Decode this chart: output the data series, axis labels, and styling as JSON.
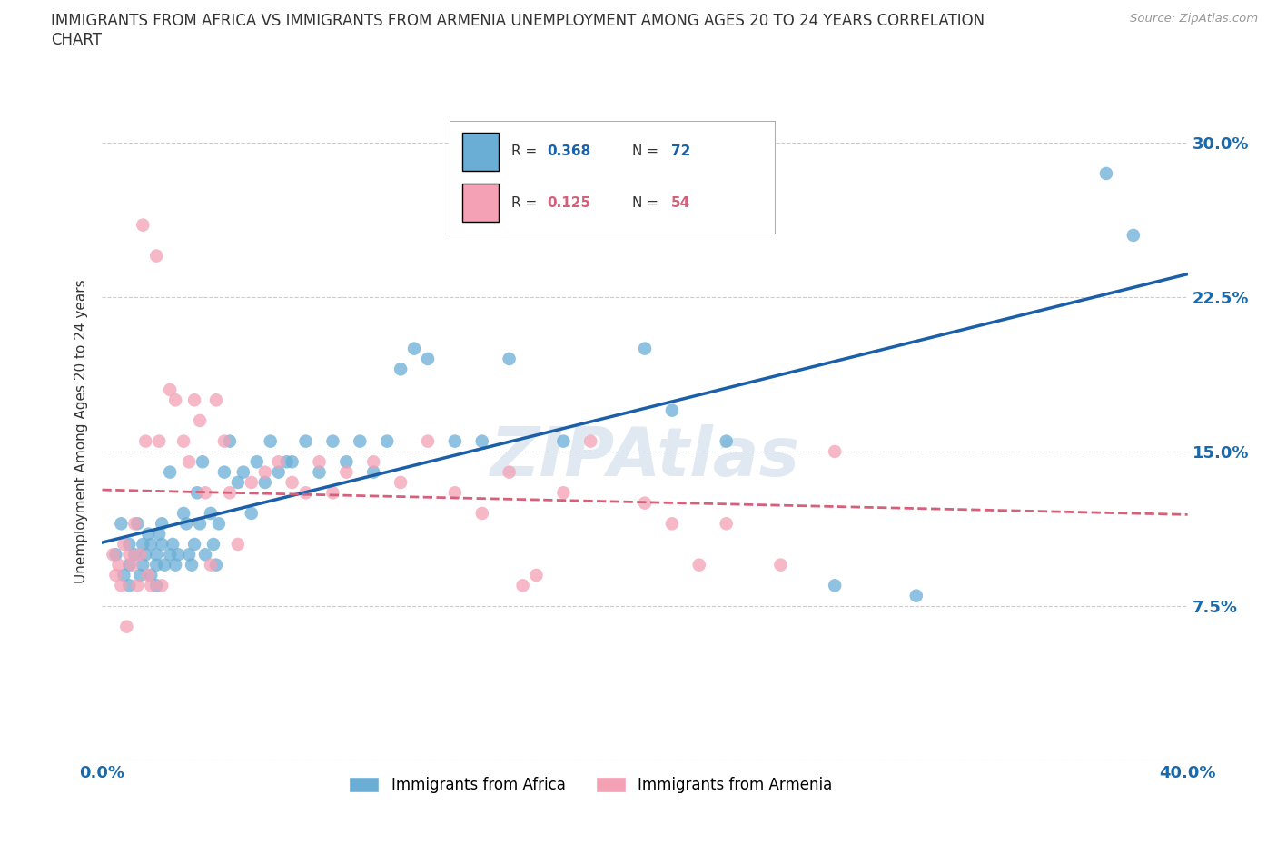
{
  "title": "IMMIGRANTS FROM AFRICA VS IMMIGRANTS FROM ARMENIA UNEMPLOYMENT AMONG AGES 20 TO 24 YEARS CORRELATION\nCHART",
  "source_text": "Source: ZipAtlas.com",
  "ylabel": "Unemployment Among Ages 20 to 24 years",
  "xlim": [
    0.0,
    0.4
  ],
  "ylim": [
    0.0,
    0.32
  ],
  "x_ticks": [
    0.0,
    0.1,
    0.2,
    0.3,
    0.4
  ],
  "x_tick_labels": [
    "0.0%",
    "",
    "",
    "",
    "40.0%"
  ],
  "y_tick_labels": [
    "",
    "7.5%",
    "15.0%",
    "22.5%",
    "30.0%"
  ],
  "y_ticks": [
    0.0,
    0.075,
    0.15,
    0.225,
    0.3
  ],
  "africa_color": "#6aaed6",
  "armenia_color": "#f4a0b5",
  "africa_line_color": "#1a5fa8",
  "armenia_line_color": "#d4607a",
  "R_africa": 0.368,
  "N_africa": 72,
  "R_armenia": 0.125,
  "N_armenia": 54,
  "background_color": "#ffffff",
  "grid_color": "#cccccc",
  "africa_x": [
    0.005,
    0.007,
    0.008,
    0.01,
    0.01,
    0.01,
    0.012,
    0.013,
    0.014,
    0.015,
    0.015,
    0.016,
    0.017,
    0.018,
    0.018,
    0.02,
    0.02,
    0.02,
    0.021,
    0.022,
    0.022,
    0.023,
    0.025,
    0.025,
    0.026,
    0.027,
    0.028,
    0.03,
    0.031,
    0.032,
    0.033,
    0.034,
    0.035,
    0.036,
    0.037,
    0.038,
    0.04,
    0.041,
    0.042,
    0.043,
    0.045,
    0.047,
    0.05,
    0.052,
    0.055,
    0.057,
    0.06,
    0.062,
    0.065,
    0.068,
    0.07,
    0.075,
    0.08,
    0.085,
    0.09,
    0.095,
    0.1,
    0.105,
    0.11,
    0.115,
    0.12,
    0.13,
    0.14,
    0.15,
    0.17,
    0.2,
    0.21,
    0.23,
    0.27,
    0.3,
    0.37,
    0.38
  ],
  "africa_y": [
    0.1,
    0.115,
    0.09,
    0.105,
    0.095,
    0.085,
    0.1,
    0.115,
    0.09,
    0.095,
    0.105,
    0.1,
    0.11,
    0.09,
    0.105,
    0.1,
    0.095,
    0.085,
    0.11,
    0.105,
    0.115,
    0.095,
    0.14,
    0.1,
    0.105,
    0.095,
    0.1,
    0.12,
    0.115,
    0.1,
    0.095,
    0.105,
    0.13,
    0.115,
    0.145,
    0.1,
    0.12,
    0.105,
    0.095,
    0.115,
    0.14,
    0.155,
    0.135,
    0.14,
    0.12,
    0.145,
    0.135,
    0.155,
    0.14,
    0.145,
    0.145,
    0.155,
    0.14,
    0.155,
    0.145,
    0.155,
    0.14,
    0.155,
    0.19,
    0.2,
    0.195,
    0.155,
    0.155,
    0.195,
    0.155,
    0.2,
    0.17,
    0.155,
    0.085,
    0.08,
    0.285,
    0.255
  ],
  "armenia_x": [
    0.004,
    0.005,
    0.006,
    0.007,
    0.008,
    0.009,
    0.01,
    0.011,
    0.012,
    0.013,
    0.014,
    0.015,
    0.016,
    0.017,
    0.018,
    0.02,
    0.021,
    0.022,
    0.025,
    0.027,
    0.03,
    0.032,
    0.034,
    0.036,
    0.038,
    0.04,
    0.042,
    0.045,
    0.047,
    0.05,
    0.055,
    0.06,
    0.065,
    0.07,
    0.075,
    0.08,
    0.085,
    0.09,
    0.1,
    0.11,
    0.12,
    0.13,
    0.14,
    0.15,
    0.155,
    0.16,
    0.17,
    0.18,
    0.2,
    0.21,
    0.22,
    0.23,
    0.25,
    0.27
  ],
  "armenia_y": [
    0.1,
    0.09,
    0.095,
    0.085,
    0.105,
    0.065,
    0.1,
    0.095,
    0.115,
    0.085,
    0.1,
    0.26,
    0.155,
    0.09,
    0.085,
    0.245,
    0.155,
    0.085,
    0.18,
    0.175,
    0.155,
    0.145,
    0.175,
    0.165,
    0.13,
    0.095,
    0.175,
    0.155,
    0.13,
    0.105,
    0.135,
    0.14,
    0.145,
    0.135,
    0.13,
    0.145,
    0.13,
    0.14,
    0.145,
    0.135,
    0.155,
    0.13,
    0.12,
    0.14,
    0.085,
    0.09,
    0.13,
    0.155,
    0.125,
    0.115,
    0.095,
    0.115,
    0.095,
    0.15
  ]
}
